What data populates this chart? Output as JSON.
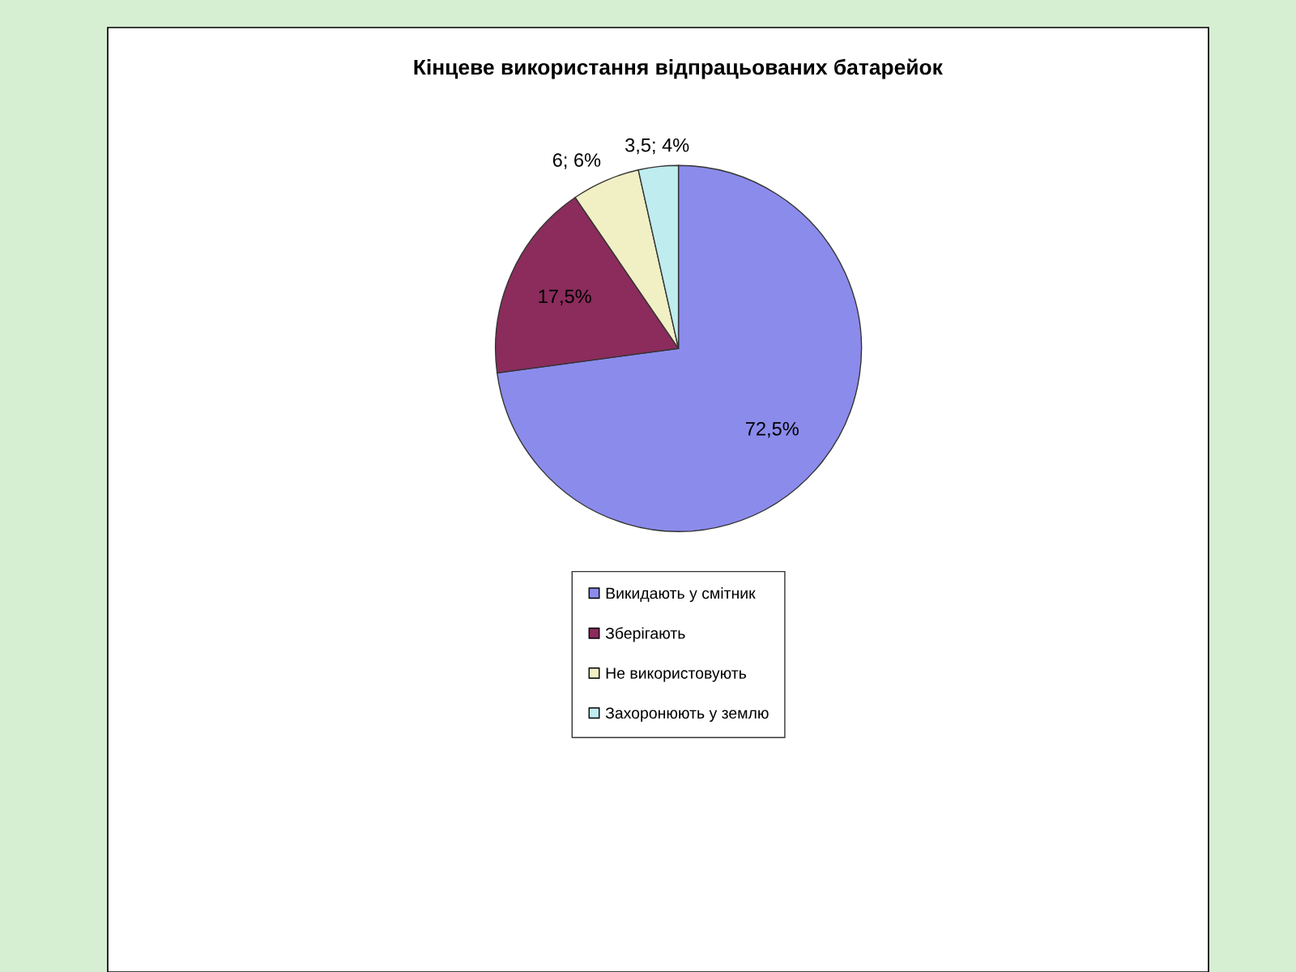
{
  "chart_data": {
    "type": "pie",
    "title": "Кінцеве використання відпрацьованих батарейок",
    "categories": [
      "Викидають у смітник",
      "Зберігають",
      "Не використовують",
      "Захоронюють у землю"
    ],
    "values": [
      72.5,
      17.5,
      6,
      3.5
    ],
    "colors": [
      "#8b8bec",
      "#8b2c5c",
      "#f1efc4",
      "#bfecee"
    ],
    "value_labels": [
      "72,5%",
      "17,5%",
      "6; 6%",
      "3,5; 4%"
    ],
    "legend": "bottom"
  }
}
